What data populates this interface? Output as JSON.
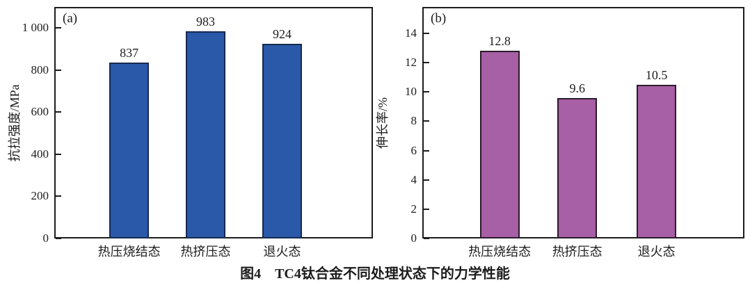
{
  "caption": "图4　TC4钛合金不同处理状态下的力学性能",
  "chart_data": [
    {
      "type": "bar",
      "panel": "(a)",
      "categories": [
        "热压烧结态",
        "热挤压态",
        "退火态"
      ],
      "values": [
        837,
        983,
        924
      ],
      "value_labels": [
        "837",
        "983",
        "924"
      ],
      "title": "",
      "xlabel": "",
      "ylabel": "抗拉强度/MPa",
      "ylim": [
        0,
        1100
      ],
      "yticks": [
        0,
        200,
        400,
        600,
        800,
        1000
      ],
      "ytick_labels": [
        "0",
        "200",
        "400",
        "600",
        "800",
        "1 000"
      ],
      "grid": false,
      "legend": "none",
      "bar_color": "#2a59a9",
      "bar_edge_color": "#16294f"
    },
    {
      "type": "bar",
      "panel": "(b)",
      "categories": [
        "热压烧结态",
        "热挤压态",
        "退火态"
      ],
      "values": [
        12.8,
        9.6,
        10.5
      ],
      "value_labels": [
        "12.8",
        "9.6",
        "10.5"
      ],
      "title": "",
      "xlabel": "",
      "ylabel": "伸长率/%",
      "ylim": [
        0,
        15.8
      ],
      "yticks": [
        0,
        2,
        4,
        6,
        8,
        10,
        12,
        14
      ],
      "ytick_labels": [
        "0",
        "2",
        "4",
        "6",
        "8",
        "10",
        "12",
        "14"
      ],
      "grid": false,
      "legend": "none",
      "bar_color": "#a75fa5",
      "bar_edge_color": "#2b1b2b"
    }
  ]
}
